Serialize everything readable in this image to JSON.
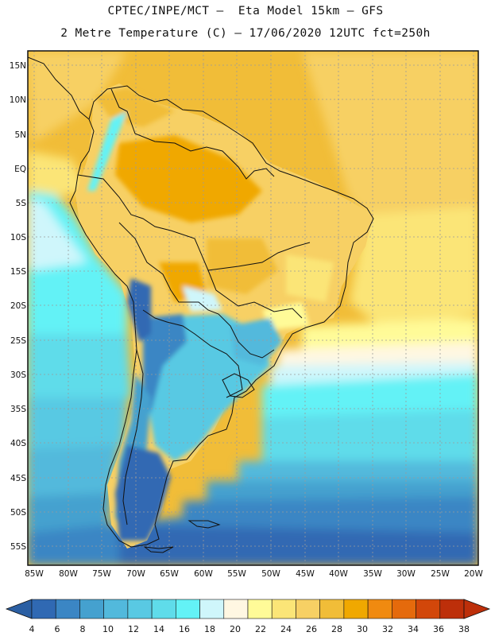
{
  "header": {
    "line1": "CPTEC/INPE/MCT –  Eta Model 15km – GFS",
    "line2": "2 Metre Temperature (C) – 17/06/2020 12UTC fct=250h"
  },
  "axes": {
    "lat_labels": [
      "15N",
      "10N",
      "5N",
      "EQ",
      "5S",
      "10S",
      "15S",
      "20S",
      "25S",
      "30S",
      "35S",
      "40S",
      "45S",
      "50S",
      "55S"
    ],
    "lon_labels": [
      "85W",
      "80W",
      "75W",
      "70W",
      "65W",
      "60W",
      "55W",
      "50W",
      "45W",
      "40W",
      "35W",
      "30W",
      "25W",
      "20W"
    ]
  },
  "colorbar": {
    "labels": [
      "4",
      "6",
      "8",
      "10",
      "12",
      "14",
      "16",
      "18",
      "20",
      "22",
      "24",
      "26",
      "28",
      "30",
      "32",
      "34",
      "36",
      "38"
    ],
    "colors": [
      "#3069b3",
      "#3b86c4",
      "#45a1cf",
      "#52b9dc",
      "#59c9e3",
      "#5fdcea",
      "#63f2f6",
      "#cff6fb",
      "#fff7e2",
      "#fffb98",
      "#fbe577",
      "#f7d064",
      "#f1bd38",
      "#f0a800",
      "#f08a10",
      "#e56a0c",
      "#d2470a",
      "#bd2f0a"
    ],
    "under_color": "#2b5fa3",
    "over_color": "#bd2f0a"
  }
}
